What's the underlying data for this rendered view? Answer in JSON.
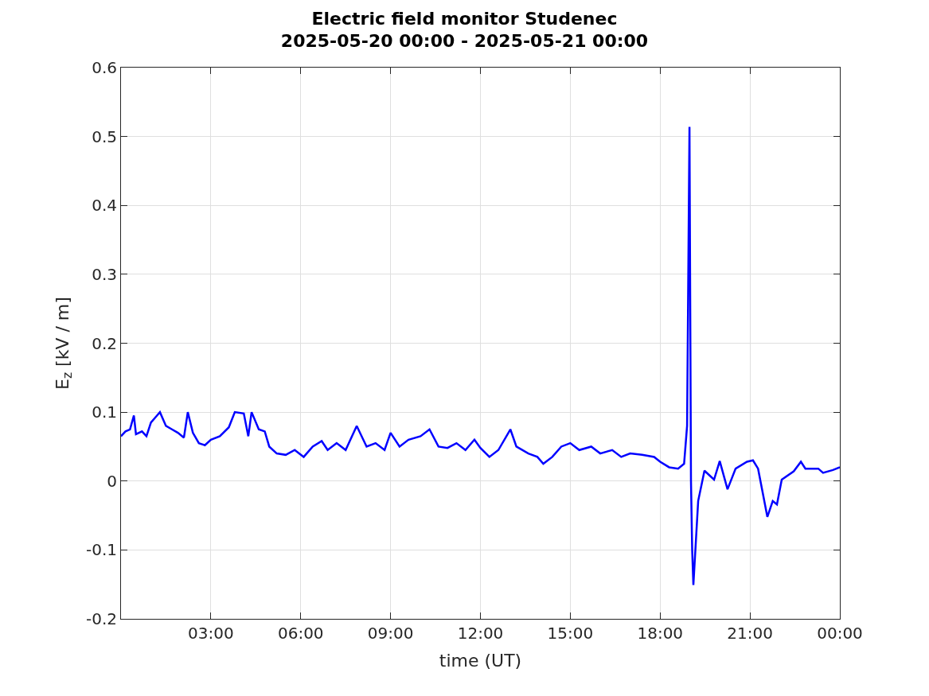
{
  "chart_data": {
    "type": "line",
    "title": "Electric field monitor Studenec\n2025-05-20 00:00 - 2025-05-21 00:00",
    "xlabel": "time (UT)",
    "ylabel": "E$_{z}$ [kV / m]",
    "x": [
      0.0,
      0.15,
      0.3,
      0.43,
      0.5,
      0.7,
      0.85,
      1.0,
      1.2,
      1.3,
      1.5,
      1.7,
      1.9,
      2.1,
      2.23,
      2.4,
      2.6,
      2.8,
      3.0,
      3.3,
      3.6,
      3.8,
      4.1,
      4.25,
      4.36,
      4.6,
      4.8,
      4.95,
      5.2,
      5.5,
      5.8,
      6.1,
      6.4,
      6.7,
      6.9,
      7.2,
      7.5,
      7.87,
      8.2,
      8.5,
      8.8,
      9.0,
      9.3,
      9.6,
      10.0,
      10.3,
      10.6,
      10.9,
      11.2,
      11.5,
      11.8,
      12.0,
      12.3,
      12.6,
      13.0,
      13.2,
      13.6,
      13.9,
      14.1,
      14.4,
      14.7,
      15.0,
      15.3,
      15.7,
      16.0,
      16.4,
      16.7,
      17.0,
      17.4,
      17.8,
      18.0,
      18.3,
      18.6,
      18.8,
      18.9,
      18.98,
      19.0,
      19.03,
      19.07,
      19.11,
      19.27,
      19.48,
      19.8,
      19.99,
      20.25,
      20.52,
      20.9,
      21.1,
      21.27,
      21.58,
      21.76,
      21.9,
      22.06,
      22.46,
      22.7,
      22.85,
      23.28,
      23.44,
      23.77,
      24.0
    ],
    "series": [
      {
        "color": "#0000ff",
        "values": [
          0.065,
          0.072,
          0.075,
          0.095,
          0.068,
          0.072,
          0.065,
          0.085,
          0.095,
          0.1,
          0.08,
          0.075,
          0.07,
          0.063,
          0.1,
          0.07,
          0.055,
          0.052,
          0.06,
          0.065,
          0.078,
          0.1,
          0.098,
          0.065,
          0.1,
          0.075,
          0.072,
          0.05,
          0.04,
          0.038,
          0.045,
          0.035,
          0.05,
          0.058,
          0.045,
          0.055,
          0.045,
          0.08,
          0.05,
          0.055,
          0.045,
          0.07,
          0.05,
          0.06,
          0.065,
          0.075,
          0.05,
          0.048,
          0.055,
          0.045,
          0.06,
          0.048,
          0.035,
          0.045,
          0.075,
          0.05,
          0.04,
          0.035,
          0.025,
          0.035,
          0.05,
          0.055,
          0.045,
          0.05,
          0.04,
          0.045,
          0.035,
          0.04,
          0.038,
          0.035,
          0.028,
          0.02,
          0.018,
          0.025,
          0.08,
          0.514,
          0.3,
          0.0,
          -0.1,
          -0.151,
          -0.029,
          0.015,
          0.002,
          0.029,
          -0.012,
          0.018,
          0.028,
          0.03,
          0.018,
          -0.052,
          -0.029,
          -0.034,
          0.002,
          0.014,
          0.028,
          0.018,
          0.018,
          0.012,
          0.016,
          0.02
        ]
      }
    ],
    "xlim": [
      0,
      24
    ],
    "xticks": [
      {
        "value": 3,
        "label": "03:00"
      },
      {
        "value": 6,
        "label": "06:00"
      },
      {
        "value": 9,
        "label": "09:00"
      },
      {
        "value": 12,
        "label": "12:00"
      },
      {
        "value": 15,
        "label": "15:00"
      },
      {
        "value": 18,
        "label": "18:00"
      },
      {
        "value": 21,
        "label": "21:00"
      },
      {
        "value": 24,
        "label": "00:00"
      }
    ],
    "ylim": [
      -0.2,
      0.6
    ],
    "yticks": [
      {
        "value": -0.2,
        "label": "-0.2"
      },
      {
        "value": -0.1,
        "label": "-0.1"
      },
      {
        "value": 0,
        "label": "0"
      },
      {
        "value": 0.1,
        "label": "0.1"
      },
      {
        "value": 0.2,
        "label": "0.2"
      },
      {
        "value": 0.3,
        "label": "0.3"
      },
      {
        "value": 0.4,
        "label": "0.4"
      },
      {
        "value": 0.5,
        "label": "0.5"
      },
      {
        "value": 0.6,
        "label": "0.6"
      }
    ],
    "grid": true
  }
}
